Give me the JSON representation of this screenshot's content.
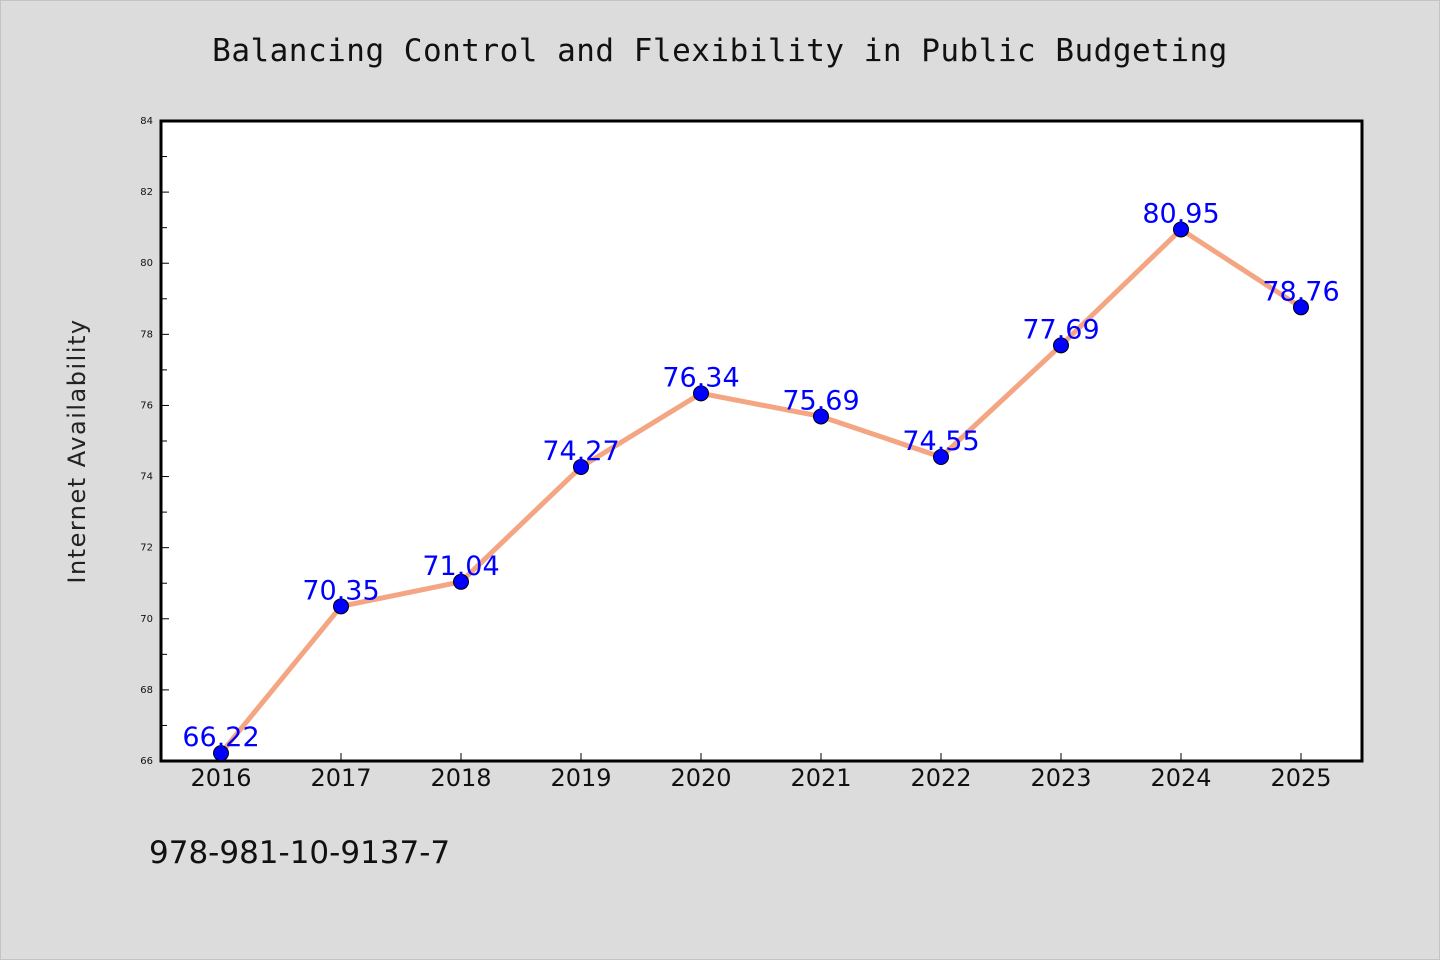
{
  "chart_data": {
    "type": "line",
    "title": "Balancing Control and Flexibility in Public Budgeting",
    "xlabel": "",
    "ylabel": "Internet Availability",
    "x": [
      "2016",
      "2017",
      "2018",
      "2019",
      "2020",
      "2021",
      "2022",
      "2023",
      "2024",
      "2025"
    ],
    "series": [
      {
        "values": [
          66.22,
          70.35,
          71.04,
          74.27,
          76.34,
          75.69,
          74.55,
          77.69,
          80.95,
          78.76
        ],
        "data_labels": [
          "66.22",
          "70.35",
          "71.04",
          "74.27",
          "76.34",
          "75.69",
          "74.55",
          "77.69",
          "80.95",
          "78.76"
        ],
        "line_color": "#f4a582",
        "marker_color": "#0000ff"
      }
    ],
    "ylim": [
      66,
      84
    ],
    "yticks": [
      "66",
      "68",
      "70",
      "72",
      "74",
      "76",
      "78",
      "80",
      "82",
      "84"
    ],
    "grid": false,
    "legend": "none"
  },
  "footnote": "978-981-10-9137-7"
}
